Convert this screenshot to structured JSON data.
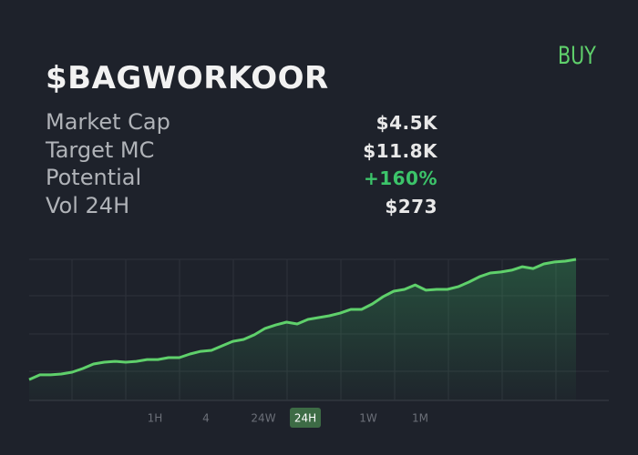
{
  "header": {
    "title": "$BAGWORKOOR",
    "button": "BUY"
  },
  "stats": [
    {
      "label": "Market Cap",
      "value": "$4.5K"
    },
    {
      "label": "Target MC",
      "value": "$11.8K"
    },
    {
      "label": "Potential",
      "value": "+160%"
    },
    {
      "label": "Vol 24H",
      "value": "$273"
    }
  ],
  "chart": {
    "type": "line",
    "color": "#5fd06b",
    "ylim": [
      0,
      100
    ],
    "values": [
      14.8,
      18.1,
      18.1,
      18.7,
      20,
      22.6,
      25.8,
      27.1,
      27.7,
      27.1,
      27.7,
      29,
      29,
      30.3,
      30.3,
      32.9,
      34.8,
      35.5,
      38.7,
      41.9,
      43.2,
      46.5,
      51,
      53.5,
      55.5,
      54.2,
      57.4,
      58.7,
      60,
      61.9,
      64.5,
      64.5,
      68.4,
      73.5,
      77.4,
      78.7,
      81.9,
      78.1,
      78.7,
      78.7,
      80.6,
      83.9,
      87.7,
      90.3,
      91,
      92.3,
      94.8,
      93.5,
      96.8,
      98.1,
      98.7,
      100
    ]
  },
  "timeframes": [
    "1H",
    "4",
    "24W",
    "24H",
    "1W",
    "1M"
  ]
}
